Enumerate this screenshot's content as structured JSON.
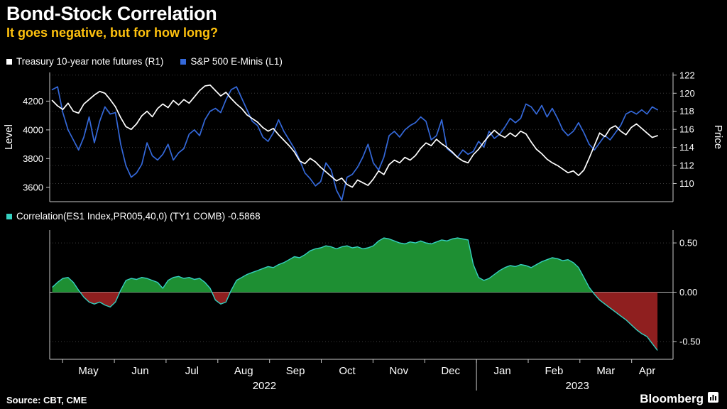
{
  "header": {
    "title": "Bond-Stock Correlation",
    "subtitle": "It goes negative, but for how long?"
  },
  "legend_top": [
    {
      "label": "Treasury 10-year note futures (R1)",
      "color": "#ffffff"
    },
    {
      "label": "S&P 500 E-Minis (L1)",
      "color": "#3468d9"
    }
  ],
  "legend_bottom": [
    {
      "label": "Correlation(ES1 Index,PR005,40,0) (TY1 COMB) -0.5868",
      "color": "#35d0c0"
    }
  ],
  "footer": {
    "source": "Source: CBT, CME",
    "brand": "Bloomberg"
  },
  "x_axis": {
    "months": [
      "May",
      "Jun",
      "Jul",
      "Aug",
      "Sep",
      "Oct",
      "Nov",
      "Dec",
      "Jan",
      "Feb",
      "Mar",
      "Apr"
    ],
    "years": [
      "2022",
      "2023"
    ]
  },
  "chart_data": [
    {
      "type": "line",
      "ylabel_left": "Level",
      "ylabel_right": "Price",
      "left_axis": {
        "range": [
          3500,
          4400
        ],
        "ticks": [
          4200,
          4000,
          3800,
          3600
        ]
      },
      "right_axis": {
        "range": [
          108,
          122.3
        ],
        "ticks": [
          122,
          120,
          118,
          116,
          114,
          112,
          110
        ]
      },
      "series": [
        {
          "name": "S&P 500 E-Minis (L1)",
          "axis": "left",
          "color": "#3468d9",
          "values": [
            4280,
            4300,
            4120,
            4000,
            3930,
            3860,
            3950,
            4090,
            3910,
            4060,
            4160,
            4110,
            4120,
            3900,
            3750,
            3670,
            3700,
            3760,
            3910,
            3820,
            3790,
            3830,
            3900,
            3790,
            3840,
            3870,
            3970,
            4000,
            3960,
            4070,
            4130,
            4150,
            4120,
            4210,
            4280,
            4300,
            4220,
            4140,
            4060,
            4030,
            3950,
            3920,
            3980,
            4070,
            3990,
            3930,
            3870,
            3790,
            3700,
            3660,
            3610,
            3640,
            3770,
            3720,
            3580,
            3510,
            3670,
            3690,
            3740,
            3810,
            3900,
            3770,
            3720,
            3810,
            3960,
            3990,
            3950,
            4000,
            4030,
            4050,
            4090,
            4060,
            3930,
            3960,
            4070,
            3870,
            3840,
            3810,
            3860,
            3830,
            3850,
            3920,
            3880,
            3990,
            3940,
            3970,
            4020,
            4080,
            4050,
            4080,
            4180,
            4160,
            4110,
            4170,
            4090,
            4150,
            4080,
            4000,
            3960,
            3990,
            4050,
            3980,
            3900,
            3860,
            3910,
            3960,
            3930,
            3980,
            4030,
            4110,
            4130,
            4110,
            4140,
            4110,
            4160,
            4140
          ]
        },
        {
          "name": "Treasury 10-year note futures (R1)",
          "axis": "right",
          "color": "#ffffff",
          "values": [
            119.2,
            118.6,
            118.2,
            118.9,
            118.0,
            117.8,
            118.8,
            119.3,
            119.8,
            120.2,
            120.0,
            119.3,
            118.5,
            117.3,
            116.3,
            116.0,
            116.6,
            117.5,
            118.0,
            117.4,
            118.3,
            118.8,
            118.4,
            119.2,
            118.7,
            119.3,
            118.9,
            119.6,
            120.3,
            120.8,
            120.9,
            120.3,
            119.7,
            120.1,
            119.4,
            118.8,
            118.3,
            117.6,
            117.2,
            116.8,
            116.2,
            115.8,
            116.1,
            115.4,
            114.8,
            114.2,
            113.5,
            112.5,
            112.2,
            112.8,
            112.4,
            111.8,
            111.3,
            110.8,
            110.3,
            110.6,
            109.9,
            109.6,
            110.4,
            110.1,
            109.8,
            110.5,
            111.4,
            111.0,
            112.1,
            112.6,
            112.3,
            112.9,
            112.6,
            113.1,
            113.9,
            114.5,
            114.2,
            114.9,
            114.4,
            114.0,
            113.5,
            112.9,
            112.5,
            112.3,
            113.2,
            113.8,
            114.6,
            115.3,
            115.9,
            115.4,
            115.1,
            115.6,
            115.2,
            115.8,
            115.5,
            114.6,
            113.8,
            113.3,
            112.7,
            112.3,
            112.0,
            111.6,
            111.2,
            111.4,
            110.9,
            111.5,
            112.8,
            114.2,
            115.6,
            115.2,
            116.1,
            116.4,
            115.8,
            115.4,
            116.2,
            116.6,
            116.1,
            115.6,
            115.1,
            115.3
          ]
        }
      ]
    },
    {
      "type": "area",
      "last_value": -0.5868,
      "right_axis": {
        "range": [
          -0.68,
          0.63
        ],
        "ticks": [
          0.5,
          0,
          -0.5
        ],
        "tick_labels": [
          "0.50",
          "0.00",
          "-0.50"
        ]
      },
      "series": [
        {
          "name": "Correlation(ES1 Index,PR005,40,0) (TY1 COMB)",
          "color": "#35d0c0",
          "positive_fill": "#1e8f33",
          "negative_fill": "#8f1f1f",
          "values": [
            0.05,
            0.1,
            0.14,
            0.15,
            0.1,
            0.02,
            -0.05,
            -0.1,
            -0.12,
            -0.1,
            -0.13,
            -0.15,
            -0.1,
            0.02,
            0.12,
            0.14,
            0.13,
            0.15,
            0.14,
            0.12,
            0.1,
            0.04,
            0.12,
            0.15,
            0.16,
            0.14,
            0.15,
            0.13,
            0.14,
            0.1,
            0.04,
            -0.08,
            -0.12,
            -0.1,
            0.02,
            0.12,
            0.15,
            0.18,
            0.2,
            0.22,
            0.24,
            0.26,
            0.25,
            0.28,
            0.3,
            0.33,
            0.36,
            0.35,
            0.38,
            0.42,
            0.44,
            0.45,
            0.47,
            0.46,
            0.44,
            0.46,
            0.47,
            0.45,
            0.46,
            0.44,
            0.45,
            0.47,
            0.52,
            0.55,
            0.54,
            0.52,
            0.5,
            0.49,
            0.51,
            0.5,
            0.52,
            0.5,
            0.49,
            0.51,
            0.53,
            0.52,
            0.54,
            0.55,
            0.54,
            0.53,
            0.28,
            0.15,
            0.12,
            0.14,
            0.18,
            0.22,
            0.25,
            0.27,
            0.26,
            0.28,
            0.27,
            0.25,
            0.28,
            0.31,
            0.33,
            0.35,
            0.34,
            0.32,
            0.33,
            0.3,
            0.25,
            0.15,
            0.05,
            -0.02,
            -0.08,
            -0.12,
            -0.16,
            -0.2,
            -0.24,
            -0.28,
            -0.33,
            -0.38,
            -0.42,
            -0.45,
            -0.52,
            -0.59
          ]
        }
      ]
    }
  ]
}
